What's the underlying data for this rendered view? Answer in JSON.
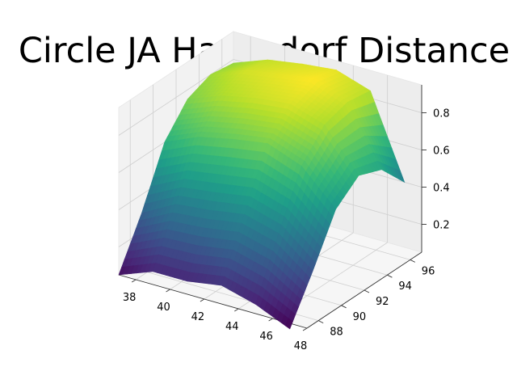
{
  "chart_data": {
    "type": "surface3d",
    "title": "Circle JA Haussdorf Distance",
    "xlabel": "",
    "ylabel": "",
    "zlabel": "",
    "xlim": [
      37,
      48
    ],
    "ylim": [
      87,
      97
    ],
    "zlim": [
      0.05,
      0.95
    ],
    "x_ticks": [
      38,
      40,
      42,
      44,
      46,
      48
    ],
    "y_ticks": [
      88,
      90,
      92,
      94,
      96
    ],
    "z_ticks": [
      0.2,
      0.4,
      0.6,
      0.8
    ],
    "z_tick_labels": [
      "0.2",
      "0.4",
      "0.6",
      "0.8"
    ],
    "grid": true,
    "colormap": "viridis",
    "x": [
      37,
      39,
      41,
      43,
      45,
      47
    ],
    "y": [
      87,
      89,
      91,
      93,
      95,
      97
    ],
    "z": [
      [
        0.05,
        0.3,
        0.6,
        0.75,
        0.8,
        0.78
      ],
      [
        0.12,
        0.4,
        0.68,
        0.82,
        0.87,
        0.85
      ],
      [
        0.12,
        0.42,
        0.72,
        0.86,
        0.9,
        0.88
      ],
      [
        0.15,
        0.45,
        0.75,
        0.88,
        0.93,
        0.9
      ],
      [
        0.1,
        0.4,
        0.68,
        0.82,
        0.86,
        0.84
      ],
      [
        0.02,
        0.25,
        0.5,
        0.6,
        0.55,
        0.4
      ]
    ]
  }
}
